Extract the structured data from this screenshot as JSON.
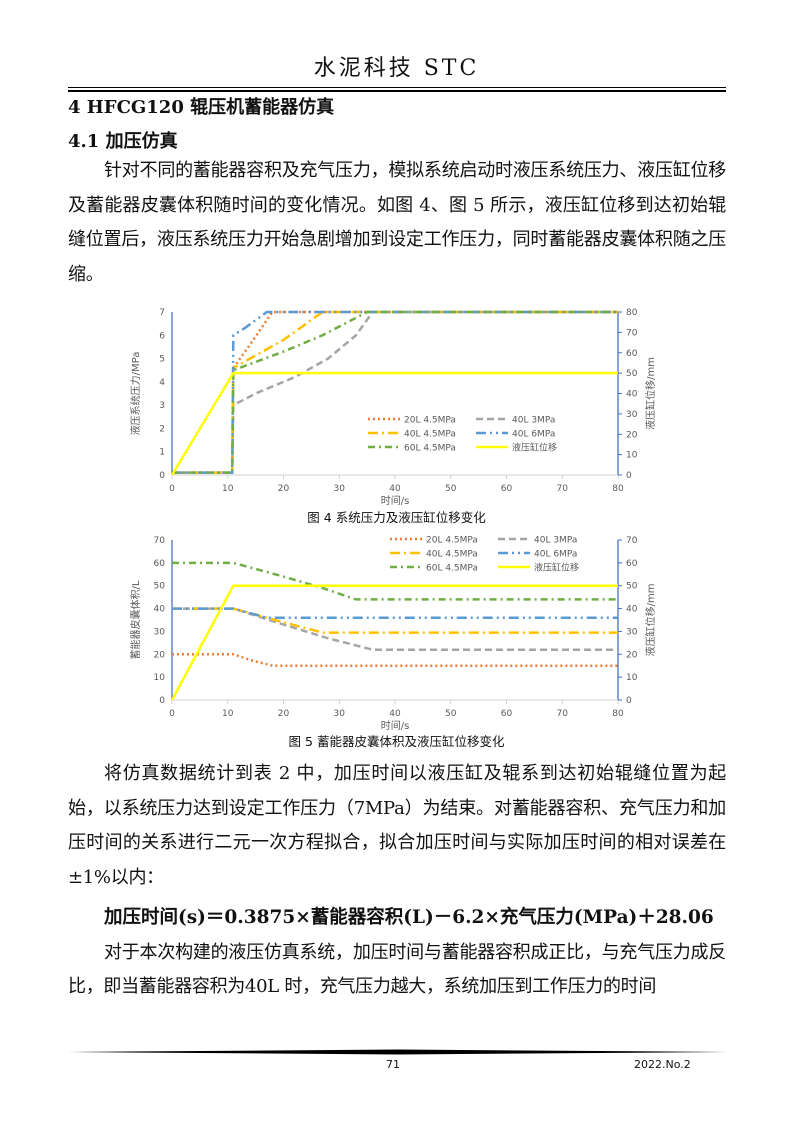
{
  "header": {
    "title": "水泥科技 STC"
  },
  "section": {
    "heading": "4 HFCG120 辊压机蓄能器仿真",
    "subheading": "4.1 加压仿真"
  },
  "paragraphs": [
    "针对不同的蓄能器容积及充气压力，模拟系统启动时液压系统压力、液压缸位移及蓄能器皮囊体积随时间的变化情况。如图 4、图 5 所示，液压缸位移到达初始辊缝位置后，液压系统压力开始急剧增加到设定工作压力，同时蓄能器皮囊体积随之压缩。",
    "将仿真数据统计到表 2 中，加压时间以液压缸及辊系到达初始辊缝位置为起始，以系统压力达到设定工作压力（7MPa）为结束。对蓄能器容积、充气压力和加压时间的关系进行二元一次方程拟合，拟合加压时间与实际加压时间的相对误差在±1%以内：",
    "对于本次构建的液压仿真系统，加压时间与蓄能器容积成正比，与充气压力成反比，即当蓄能器容积为40L 时，充气压力越大，系统加压到工作压力的时间"
  ],
  "formula": "加压时间(s)＝0.3875×蓄能器容积(L)－6.2×充气压力(MPa)＋28.06",
  "footer": {
    "page": "71",
    "issue": "2022.No.2"
  },
  "chart_data": [
    {
      "type": "line",
      "caption": "图 4 系统压力及液压缸位移变化",
      "xlabel": "时间/s",
      "ylabel": "液压系统压力/MPa",
      "y2label": "液压缸位移/mm",
      "xlim": [
        0,
        80
      ],
      "ylim": [
        0,
        7
      ],
      "y2lim": [
        0,
        80
      ],
      "xticks": [
        0,
        10,
        20,
        30,
        40,
        50,
        60,
        70,
        80
      ],
      "yticks": [
        0,
        1,
        2,
        3,
        4,
        5,
        6,
        7
      ],
      "y2ticks": [
        0,
        10,
        20,
        30,
        40,
        50,
        60,
        70,
        80
      ],
      "legend": "inside-lower-right",
      "grid": false,
      "series": [
        {
          "name": "20L 4.5MPa",
          "color": "#ED7D31",
          "dash": "dot",
          "axis": "left",
          "x": [
            0,
            10.8,
            11,
            14,
            18,
            80
          ],
          "y": [
            0.1,
            0.1,
            4.6,
            5.6,
            7,
            7
          ]
        },
        {
          "name": "40L 3MPa",
          "color": "#A5A5A5",
          "dash": "dash",
          "axis": "left",
          "x": [
            0,
            10.8,
            11,
            15,
            22,
            28,
            33,
            36,
            80
          ],
          "y": [
            0.1,
            0.1,
            3,
            3.5,
            4.2,
            5,
            6,
            7,
            7
          ]
        },
        {
          "name": "40L 4.5MPa",
          "color": "#FFC000",
          "dash": "longdashdot",
          "axis": "left",
          "x": [
            0,
            10.8,
            11,
            20,
            27,
            80
          ],
          "y": [
            0.1,
            0.1,
            4.6,
            5.8,
            7,
            7
          ]
        },
        {
          "name": "40L 6MPa",
          "color": "#5B9BD5",
          "dash": "longdashdotdot",
          "axis": "left",
          "x": [
            0,
            10.8,
            11,
            13,
            17,
            80
          ],
          "y": [
            0.1,
            0.1,
            6,
            6.3,
            7,
            7
          ]
        },
        {
          "name": "60L 4.5MPa",
          "color": "#70AD47",
          "dash": "dashdot",
          "axis": "left",
          "x": [
            0,
            10.8,
            11,
            20,
            27,
            35,
            80
          ],
          "y": [
            0.1,
            0.1,
            4.5,
            5.3,
            6,
            7,
            7
          ]
        },
        {
          "name": "液压缸位移",
          "color": "#FFFF00",
          "dash": "solid",
          "axis": "right",
          "x": [
            0,
            11,
            80
          ],
          "y": [
            0,
            50,
            50
          ]
        }
      ]
    },
    {
      "type": "line",
      "caption": "图 5 蓄能器皮囊体积及液压缸位移变化",
      "xlabel": "时间/s",
      "ylabel": "蓄能器皮囊体积/L",
      "y2label": "液压缸位移/mm",
      "xlim": [
        0,
        80
      ],
      "ylim": [
        0,
        70
      ],
      "y2lim": [
        0,
        70
      ],
      "xticks": [
        0,
        10,
        20,
        30,
        40,
        50,
        60,
        70,
        80
      ],
      "yticks": [
        0,
        10,
        20,
        30,
        40,
        50,
        60,
        70
      ],
      "y2ticks": [
        0,
        10,
        20,
        30,
        40,
        50,
        60,
        70
      ],
      "legend": "top-right",
      "grid": false,
      "series": [
        {
          "name": "20L 4.5MPa",
          "color": "#ED7D31",
          "dash": "dot",
          "axis": "left",
          "x": [
            0,
            11,
            14,
            18,
            80
          ],
          "y": [
            20,
            20,
            17.5,
            15,
            15
          ]
        },
        {
          "name": "40L 3MPa",
          "color": "#A5A5A5",
          "dash": "dash",
          "axis": "left",
          "x": [
            0,
            11,
            20,
            28,
            36,
            80
          ],
          "y": [
            40,
            40,
            33,
            27,
            22,
            22
          ]
        },
        {
          "name": "40L 4.5MPa",
          "color": "#FFC000",
          "dash": "longdashdot",
          "axis": "left",
          "x": [
            0,
            11,
            20,
            27,
            80
          ],
          "y": [
            40,
            40,
            34,
            29.5,
            29.5
          ]
        },
        {
          "name": "40L 6MPa",
          "color": "#5B9BD5",
          "dash": "longdashdotdot",
          "axis": "left",
          "x": [
            0,
            11,
            17,
            80
          ],
          "y": [
            40,
            40,
            36,
            36
          ]
        },
        {
          "name": "60L 4.5MPa",
          "color": "#70AD47",
          "dash": "dashdot",
          "axis": "left",
          "x": [
            0,
            11,
            20,
            27,
            33,
            80
          ],
          "y": [
            60,
            60,
            54,
            49,
            44,
            44
          ]
        },
        {
          "name": "液压缸位移",
          "color": "#FFFF00",
          "dash": "solid",
          "axis": "right",
          "x": [
            0,
            11,
            80
          ],
          "y": [
            0,
            50,
            50
          ]
        }
      ]
    }
  ]
}
